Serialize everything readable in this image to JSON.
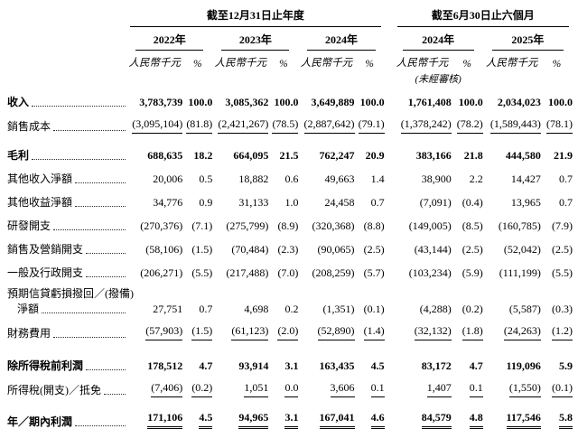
{
  "colors": {
    "text": "#000000",
    "background": "#ffffff",
    "rule": "#000000",
    "leader_dots": "#2a2a2a"
  },
  "document": {
    "table": {
      "section_headers": [
        {
          "label": "截至12月31日止年度"
        },
        {
          "label": "截至6月30日止六個月"
        }
      ],
      "year_headers": [
        "2022年",
        "2023年",
        "2024年",
        "2024年",
        "2025年"
      ],
      "unit_label": "人民幣千元",
      "percent_label": "%",
      "unaudited_note": "(未經審核)",
      "rows": [
        {
          "label": "收入",
          "bold": true,
          "underline": "none",
          "values": [
            "3,783,739",
            "100.0",
            "3,085,362",
            "100.0",
            "3,649,889",
            "100.0",
            "1,761,408",
            "100.0",
            "2,034,023",
            "100.0"
          ]
        },
        {
          "label": "銷售成本",
          "bold": false,
          "underline": "single",
          "values": [
            "(3,095,104)",
            "(81.8)",
            "(2,421,267)",
            "(78.5)",
            "(2,887,642)",
            "(79.1)",
            "(1,378,242)",
            "(78.2)",
            "(1,589,443)",
            "(78.1)"
          ]
        },
        {
          "label": "毛利",
          "bold": true,
          "underline": "none",
          "values": [
            "688,635",
            "18.2",
            "664,095",
            "21.5",
            "762,247",
            "20.9",
            "383,166",
            "21.8",
            "444,580",
            "21.9"
          ]
        },
        {
          "label": "其他收入淨額",
          "bold": false,
          "underline": "none",
          "values": [
            "20,006",
            "0.5",
            "18,882",
            "0.6",
            "49,663",
            "1.4",
            "38,900",
            "2.2",
            "14,427",
            "0.7"
          ]
        },
        {
          "label": "其他收益淨額",
          "bold": false,
          "underline": "none",
          "values": [
            "34,776",
            "0.9",
            "31,133",
            "1.0",
            "24,458",
            "0.7",
            "(7,091)",
            "(0.4)",
            "13,965",
            "0.7"
          ]
        },
        {
          "label": "研發開支",
          "bold": false,
          "underline": "none",
          "values": [
            "(270,376)",
            "(7.1)",
            "(275,799)",
            "(8.9)",
            "(320,368)",
            "(8.8)",
            "(149,005)",
            "(8.5)",
            "(160,785)",
            "(7.9)"
          ]
        },
        {
          "label": "銷售及營銷開支",
          "bold": false,
          "underline": "none",
          "values": [
            "(58,106)",
            "(1.5)",
            "(70,484)",
            "(2.3)",
            "(90,065)",
            "(2.5)",
            "(43,144)",
            "(2.5)",
            "(52,042)",
            "(2.5)"
          ]
        },
        {
          "label": "一般及行政開支",
          "bold": false,
          "underline": "none",
          "values": [
            "(206,271)",
            "(5.5)",
            "(217,488)",
            "(7.0)",
            "(208,259)",
            "(5.7)",
            "(103,234)",
            "(5.9)",
            "(111,199)",
            "(5.5)"
          ]
        },
        {
          "label": "預期信貸虧損撥回／(撥備)",
          "label2": "淨額",
          "bold": false,
          "underline": "none",
          "values": [
            "27,751",
            "0.7",
            "4,698",
            "0.2",
            "(1,351)",
            "(0.1)",
            "(4,288)",
            "(0.2)",
            "(5,587)",
            "(0.3)"
          ]
        },
        {
          "label": "財務費用",
          "bold": false,
          "underline": "single",
          "values": [
            "(57,903)",
            "(1.5)",
            "(61,123)",
            "(2.0)",
            "(52,890)",
            "(1.4)",
            "(32,132)",
            "(1.8)",
            "(24,263)",
            "(1.2)"
          ]
        },
        {
          "label": "除所得稅前利潤",
          "bold": true,
          "underline": "none",
          "values": [
            "178,512",
            "4.7",
            "93,914",
            "3.1",
            "163,435",
            "4.5",
            "83,172",
            "4.7",
            "119,096",
            "5.9"
          ]
        },
        {
          "label": "所得稅(開支)／抵免",
          "bold": false,
          "underline": "single",
          "values": [
            "(7,406)",
            "(0.2)",
            "1,051",
            "0.0",
            "3,606",
            "0.1",
            "1,407",
            "0.1",
            "(1,550)",
            "(0.1)"
          ]
        },
        {
          "label": "年／期內利潤",
          "bold": true,
          "underline": "double",
          "values": [
            "171,106",
            "4.5",
            "94,965",
            "3.1",
            "167,041",
            "4.6",
            "84,579",
            "4.8",
            "117,546",
            "5.8"
          ]
        }
      ]
    }
  }
}
